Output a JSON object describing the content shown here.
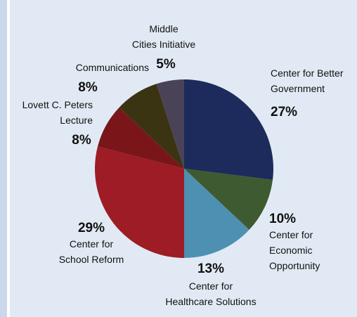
{
  "chart_data": {
    "type": "pie",
    "categories": [
      [
        "Center for Better",
        "Government"
      ],
      [
        "Center for",
        "Economic",
        "Opportunity"
      ],
      [
        "Center for",
        "Healthcare Solutions"
      ],
      [
        "Center for",
        "School Reform"
      ],
      [
        "Lovett C. Peters",
        "Lecture"
      ],
      [
        "Communications"
      ],
      [
        "Middle",
        "Cities Initiative"
      ]
    ],
    "values": [
      27,
      10,
      13,
      29,
      8,
      8,
      5
    ],
    "value_labels": [
      "27%",
      "10%",
      "13%",
      "29%",
      "8%",
      "8%",
      "5%"
    ],
    "colors": [
      "#1d2a5c",
      "#3e5a30",
      "#4d90b2",
      "#9e1c25",
      "#7a1519",
      "#3b3412",
      "#4a4358"
    ]
  }
}
